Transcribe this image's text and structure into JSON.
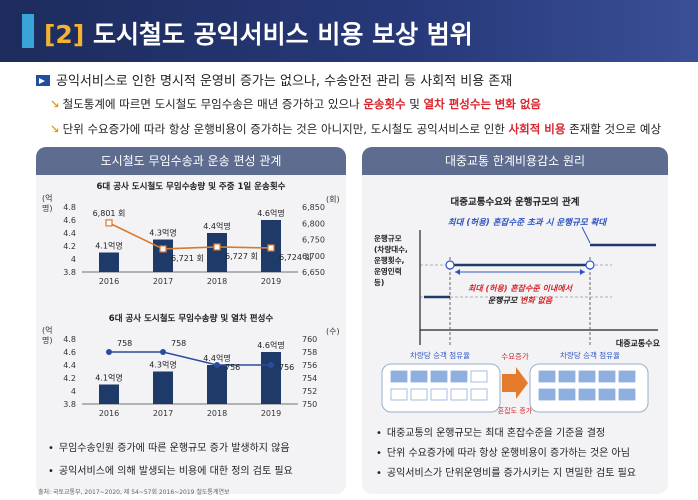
{
  "banner": {
    "num": "[2]",
    "title": "도시철도 공익서비스 비용 보상 범위"
  },
  "lead": "공익서비스로 인한 명시적 운영비 증가는 없으나, 수송안전 관리 등 사회적 비용 존재",
  "sub1": {
    "a": "철도통계에 따르면 도시철도 무임수송은 매년 증가하고 있으나 ",
    "b": "운송횟수",
    "c": " 및 ",
    "d": "열차 편성수는",
    "e": " ",
    "f": "변화 없음"
  },
  "sub2": {
    "a": "단위 수요증가에 따라 항상 운행비용이 증가하는 것은 아니지만, 도시철도 공익서비스로 인한 ",
    "b": "사회적 비용",
    "c": " 존재할 것으로 예상"
  },
  "left": {
    "head": "도시철도 무임수송과 운송 편성 관계",
    "bullets": [
      "무임수송인원 증가에 따른 운행규모 증가 발생하지 않음",
      "공익서비스에 의해 발생되는 비용에 대한 정의 검토 필요"
    ],
    "source": "출처: 국토교통부, 2017~2020, 제 54~57회 2016~2019 철도통계연보"
  },
  "right": {
    "head": "대중교통 한계비용감소 원리",
    "title": "대중교통수요와 운행규모의 관계",
    "label_top": "최대 (허용) 혼잡수준 초과 시 운행규모 확대",
    "label_mid1": "최대 (허용) 혼잡수준 이내에서",
    "label_mid2a": "운행규모 ",
    "label_mid2b": "변화 없음",
    "ylabel": [
      "운행규모",
      "(차량대수,",
      "운행횟수,",
      "운영인력",
      "등)"
    ],
    "xlabel": "대중교통수요",
    "car_left": "차량당 승객 점유율",
    "car_right": "차량당 승객 점유율",
    "demand_up": "수요증가",
    "congestion_up": "혼잡도 증가",
    "bullets": [
      "대중교통의 운행규모는 최대 혼잡수준을 기준을 결정",
      "단위 수요증가에 따라 항상 운행비용이 증가하는 것은 아님",
      "공익서비스가 단위운영비를 증가시키는 지 면밀한 검토 필요"
    ]
  },
  "chart_data": [
    {
      "type": "bar",
      "title": "6대 공사 도시철도 무임수송량 및 주중 1일 운송횟수",
      "categories": [
        "2016",
        "2017",
        "2018",
        "2019"
      ],
      "ylabel_left": "(억 명)",
      "ylabel_right": "(회)",
      "ylim": [
        3.8,
        4.8
      ],
      "ylim_right": [
        6650,
        6850
      ],
      "yticks": [
        "4.8",
        "4.6",
        "4.4",
        "4.2",
        "4",
        "3.8"
      ],
      "yticks_right": [
        "6,850",
        "6,800",
        "6,750",
        "6,700",
        "6,650"
      ],
      "series": [
        {
          "values": [
            4.1,
            4.3,
            4.4,
            4.6
          ],
          "labels": [
            "4.1억명",
            "4.3억명",
            "4.4억명",
            "4.6억명"
          ],
          "color": "#1e3a68"
        },
        {
          "values": [
            6801,
            6721,
            6727,
            6724
          ],
          "labels": [
            "6,801 회",
            "6,721 회",
            "6,727 회",
            "6,724 회"
          ],
          "color": "#d9792f"
        }
      ]
    },
    {
      "type": "bar",
      "title": "6대 공사 도시철도 무임수송량 및 열차 편성수",
      "categories": [
        "2016",
        "2017",
        "2018",
        "2019"
      ],
      "ylabel_left": "(억 명)",
      "ylabel_right": "(수)",
      "ylim": [
        3.8,
        4.8
      ],
      "ylim_right": [
        750,
        760
      ],
      "yticks": [
        "4.8",
        "4.6",
        "4.4",
        "4.2",
        "4",
        "3.8"
      ],
      "yticks_right": [
        "760",
        "758",
        "756",
        "754",
        "752",
        "750"
      ],
      "series": [
        {
          "values": [
            4.1,
            4.3,
            4.4,
            4.6
          ],
          "labels": [
            "4.1억명",
            "4.3억명",
            "4.4억명",
            "4.6억명"
          ],
          "color": "#1e3a68"
        },
        {
          "values": [
            758,
            758,
            756,
            756
          ],
          "labels": [
            "758",
            "758",
            "756",
            "756"
          ],
          "color": "#2c4aa0"
        }
      ]
    }
  ]
}
